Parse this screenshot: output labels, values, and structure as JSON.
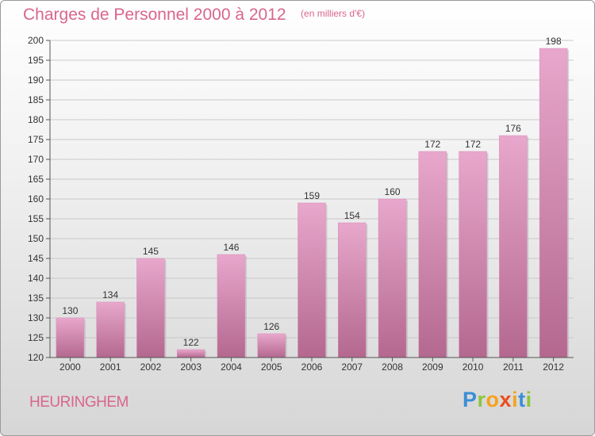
{
  "title": "Charges de Personnel 2000 à 2012",
  "subtitle": "(en milliers d'€)",
  "commune": "HEURINGHEM",
  "brand": {
    "letters": [
      "P",
      "r",
      "o",
      "x",
      "i",
      "t",
      "i"
    ],
    "colors": [
      "#3a8fd6",
      "#8cc63f",
      "#f7a21b",
      "#e94e1b",
      "#f7a21b",
      "#3a8fd6",
      "#8cc63f"
    ]
  },
  "colors": {
    "accent": "#d9658e",
    "bar_top": "#e8a7cc",
    "bar_bottom": "#b4688f"
  },
  "chart_data": {
    "type": "bar",
    "title": "Charges de Personnel 2000 à 2012",
    "subtitle": "(en milliers d'€)",
    "categories": [
      "2000",
      "2001",
      "2002",
      "2003",
      "2004",
      "2005",
      "2006",
      "2007",
      "2008",
      "2009",
      "2010",
      "2011",
      "2012"
    ],
    "values": [
      130,
      134,
      145,
      122,
      146,
      126,
      159,
      154,
      160,
      172,
      172,
      176,
      198
    ],
    "ylim": [
      120,
      200
    ],
    "yticks": [
      120,
      125,
      130,
      135,
      140,
      145,
      150,
      155,
      160,
      165,
      170,
      175,
      180,
      185,
      190,
      195,
      200
    ],
    "grid": true,
    "data_labels": true
  }
}
